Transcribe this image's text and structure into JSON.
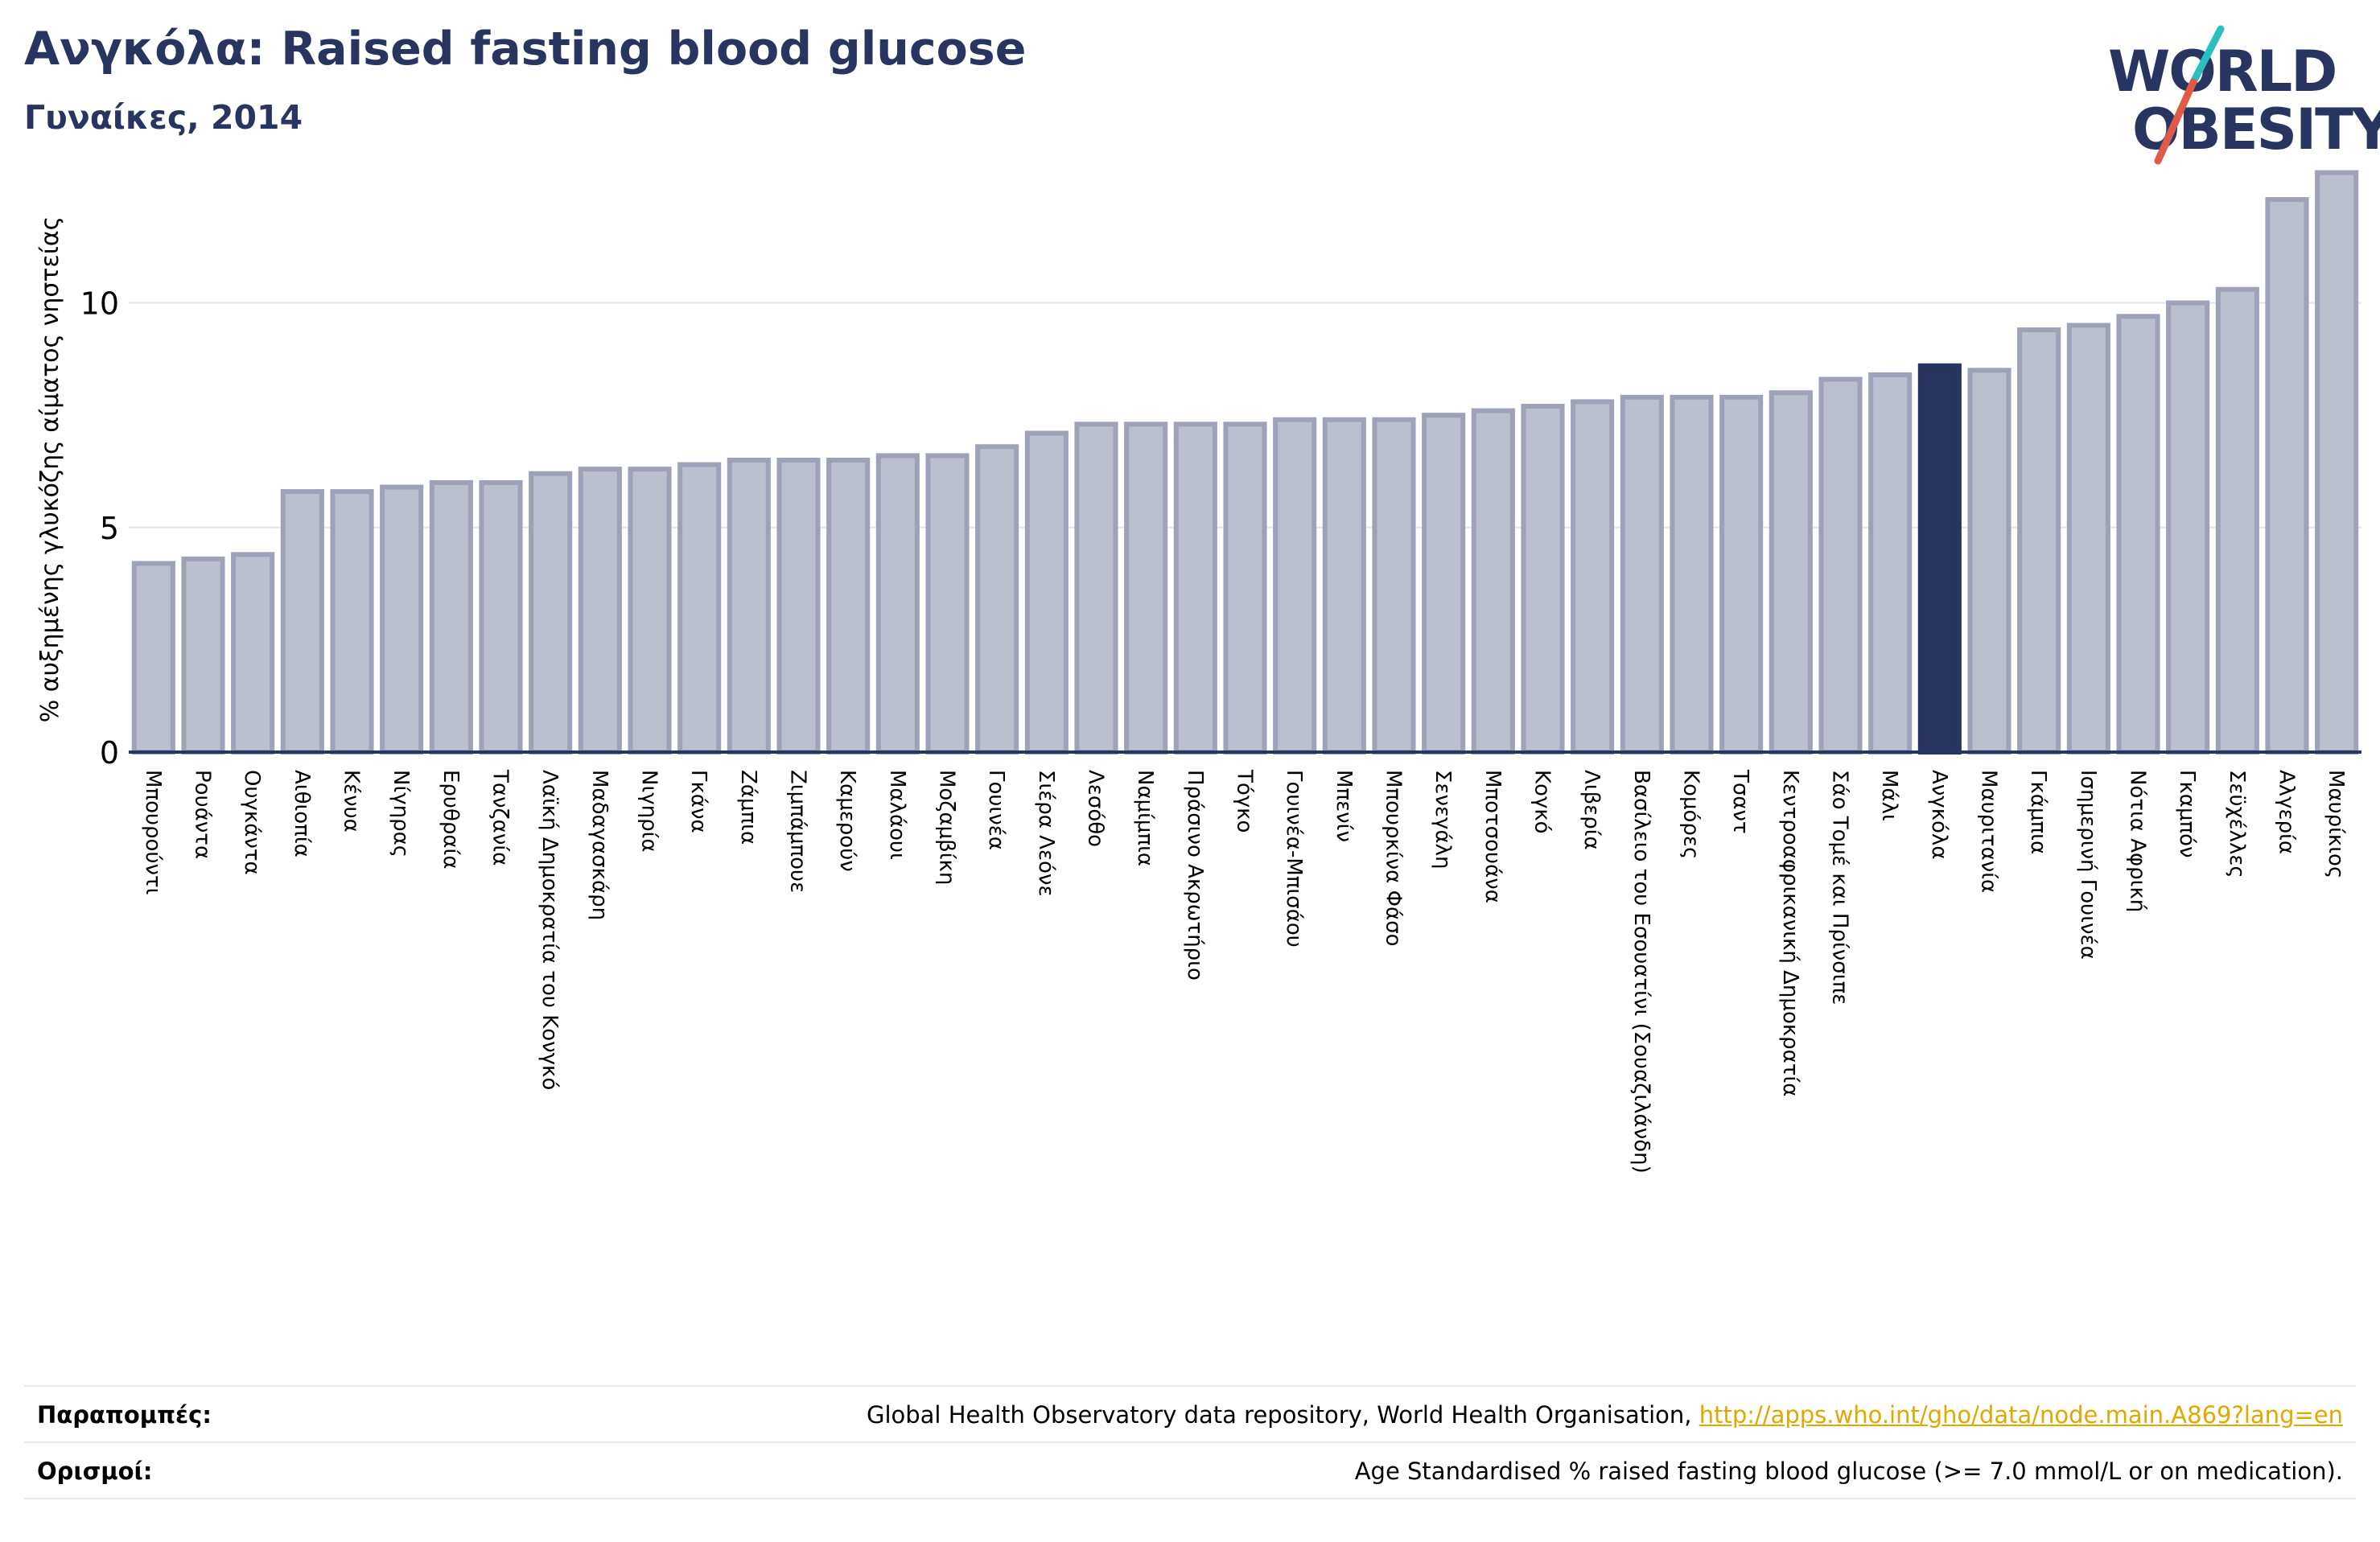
{
  "header": {
    "title": "Ανγκόλα: Raised fasting blood glucose",
    "subtitle": "Γυναίκες, 2014"
  },
  "logo": {
    "line1": "WORLD",
    "line2": "OBESITY",
    "colors": {
      "text": "#283560",
      "slash_top": "#2bbfc0",
      "slash_bottom": "#e05a4a"
    }
  },
  "footer": {
    "references_label": "Παραπομπές:",
    "references_text": "Global Health Observatory data repository, World Health Organisation, ",
    "references_link": "http://apps.who.int/gho/data/node.main.A869?lang=en",
    "definitions_label": "Ορισμοί:",
    "definitions_text": "Age Standardised % raised fasting blood glucose (>= 7.0 mmol/L or on medication)."
  },
  "colors": {
    "bar_fill": "#bcbfce",
    "bar_stroke": "#9da2b8",
    "highlight": "#283560",
    "grid": "#e6e6e6",
    "axis": "#283560"
  },
  "chart_data": {
    "type": "bar",
    "ylabel": "% αυξημένης γλυκόζης αίματος νηστείας",
    "ylim": [
      0,
      13
    ],
    "yticks": [
      0,
      5,
      10
    ],
    "grid": true,
    "highlight": "Ανγκόλα",
    "categories": [
      "Μπουρούντι",
      "Ρουάντα",
      "Ουγκάντα",
      "Αιθιοπία",
      "Κένυα",
      "Νίγηρας",
      "Ερυθραία",
      "Τανζανία",
      "Λαϊκή Δημοκρατία του Κονγκό",
      "Μαδαγασκάρη",
      "Νιγηρία",
      "Γκάνα",
      "Ζάμπια",
      "Ζιμπάμπουε",
      "Καμερούν",
      "Μαλάουι",
      "Μοζαμβίκη",
      "Γουινέα",
      "Σιέρα Λεόνε",
      "Λεσόθο",
      "Ναμίμπια",
      "Πράσινο Ακρωτήριο",
      "Τόγκο",
      "Γουινέα-Μπισάου",
      "Μπενίν",
      "Μπουρκίνα Φάσο",
      "Σενεγάλη",
      "Μποτσουάνα",
      "Κογκό",
      "Λιβερία",
      "Βασίλειο του Εσουατίνι (Σουαζιλάνδη)",
      "Κομόρες",
      "Τσαντ",
      "Κεντροαφρικανική Δημοκρατία",
      "Σάο Τομέ και Πρίνσιπε",
      "Μάλι",
      "Ανγκόλα",
      "Μαυριτανία",
      "Γκάμπια",
      "Ισημερινή Γουινέα",
      "Νότια Αφρική",
      "Γκαμπόν",
      "Σεϋχέλλες",
      "Αλγερία",
      "Μαυρίκιος"
    ],
    "values": [
      4.2,
      4.3,
      4.4,
      5.8,
      5.8,
      5.9,
      6.0,
      6.0,
      6.2,
      6.3,
      6.3,
      6.4,
      6.5,
      6.5,
      6.5,
      6.6,
      6.6,
      6.8,
      7.1,
      7.3,
      7.3,
      7.3,
      7.3,
      7.4,
      7.4,
      7.4,
      7.5,
      7.6,
      7.7,
      7.8,
      7.9,
      7.9,
      7.9,
      8.0,
      8.3,
      8.4,
      8.6,
      8.5,
      9.4,
      9.5,
      9.7,
      10.0,
      10.3,
      12.3,
      12.9
    ]
  }
}
